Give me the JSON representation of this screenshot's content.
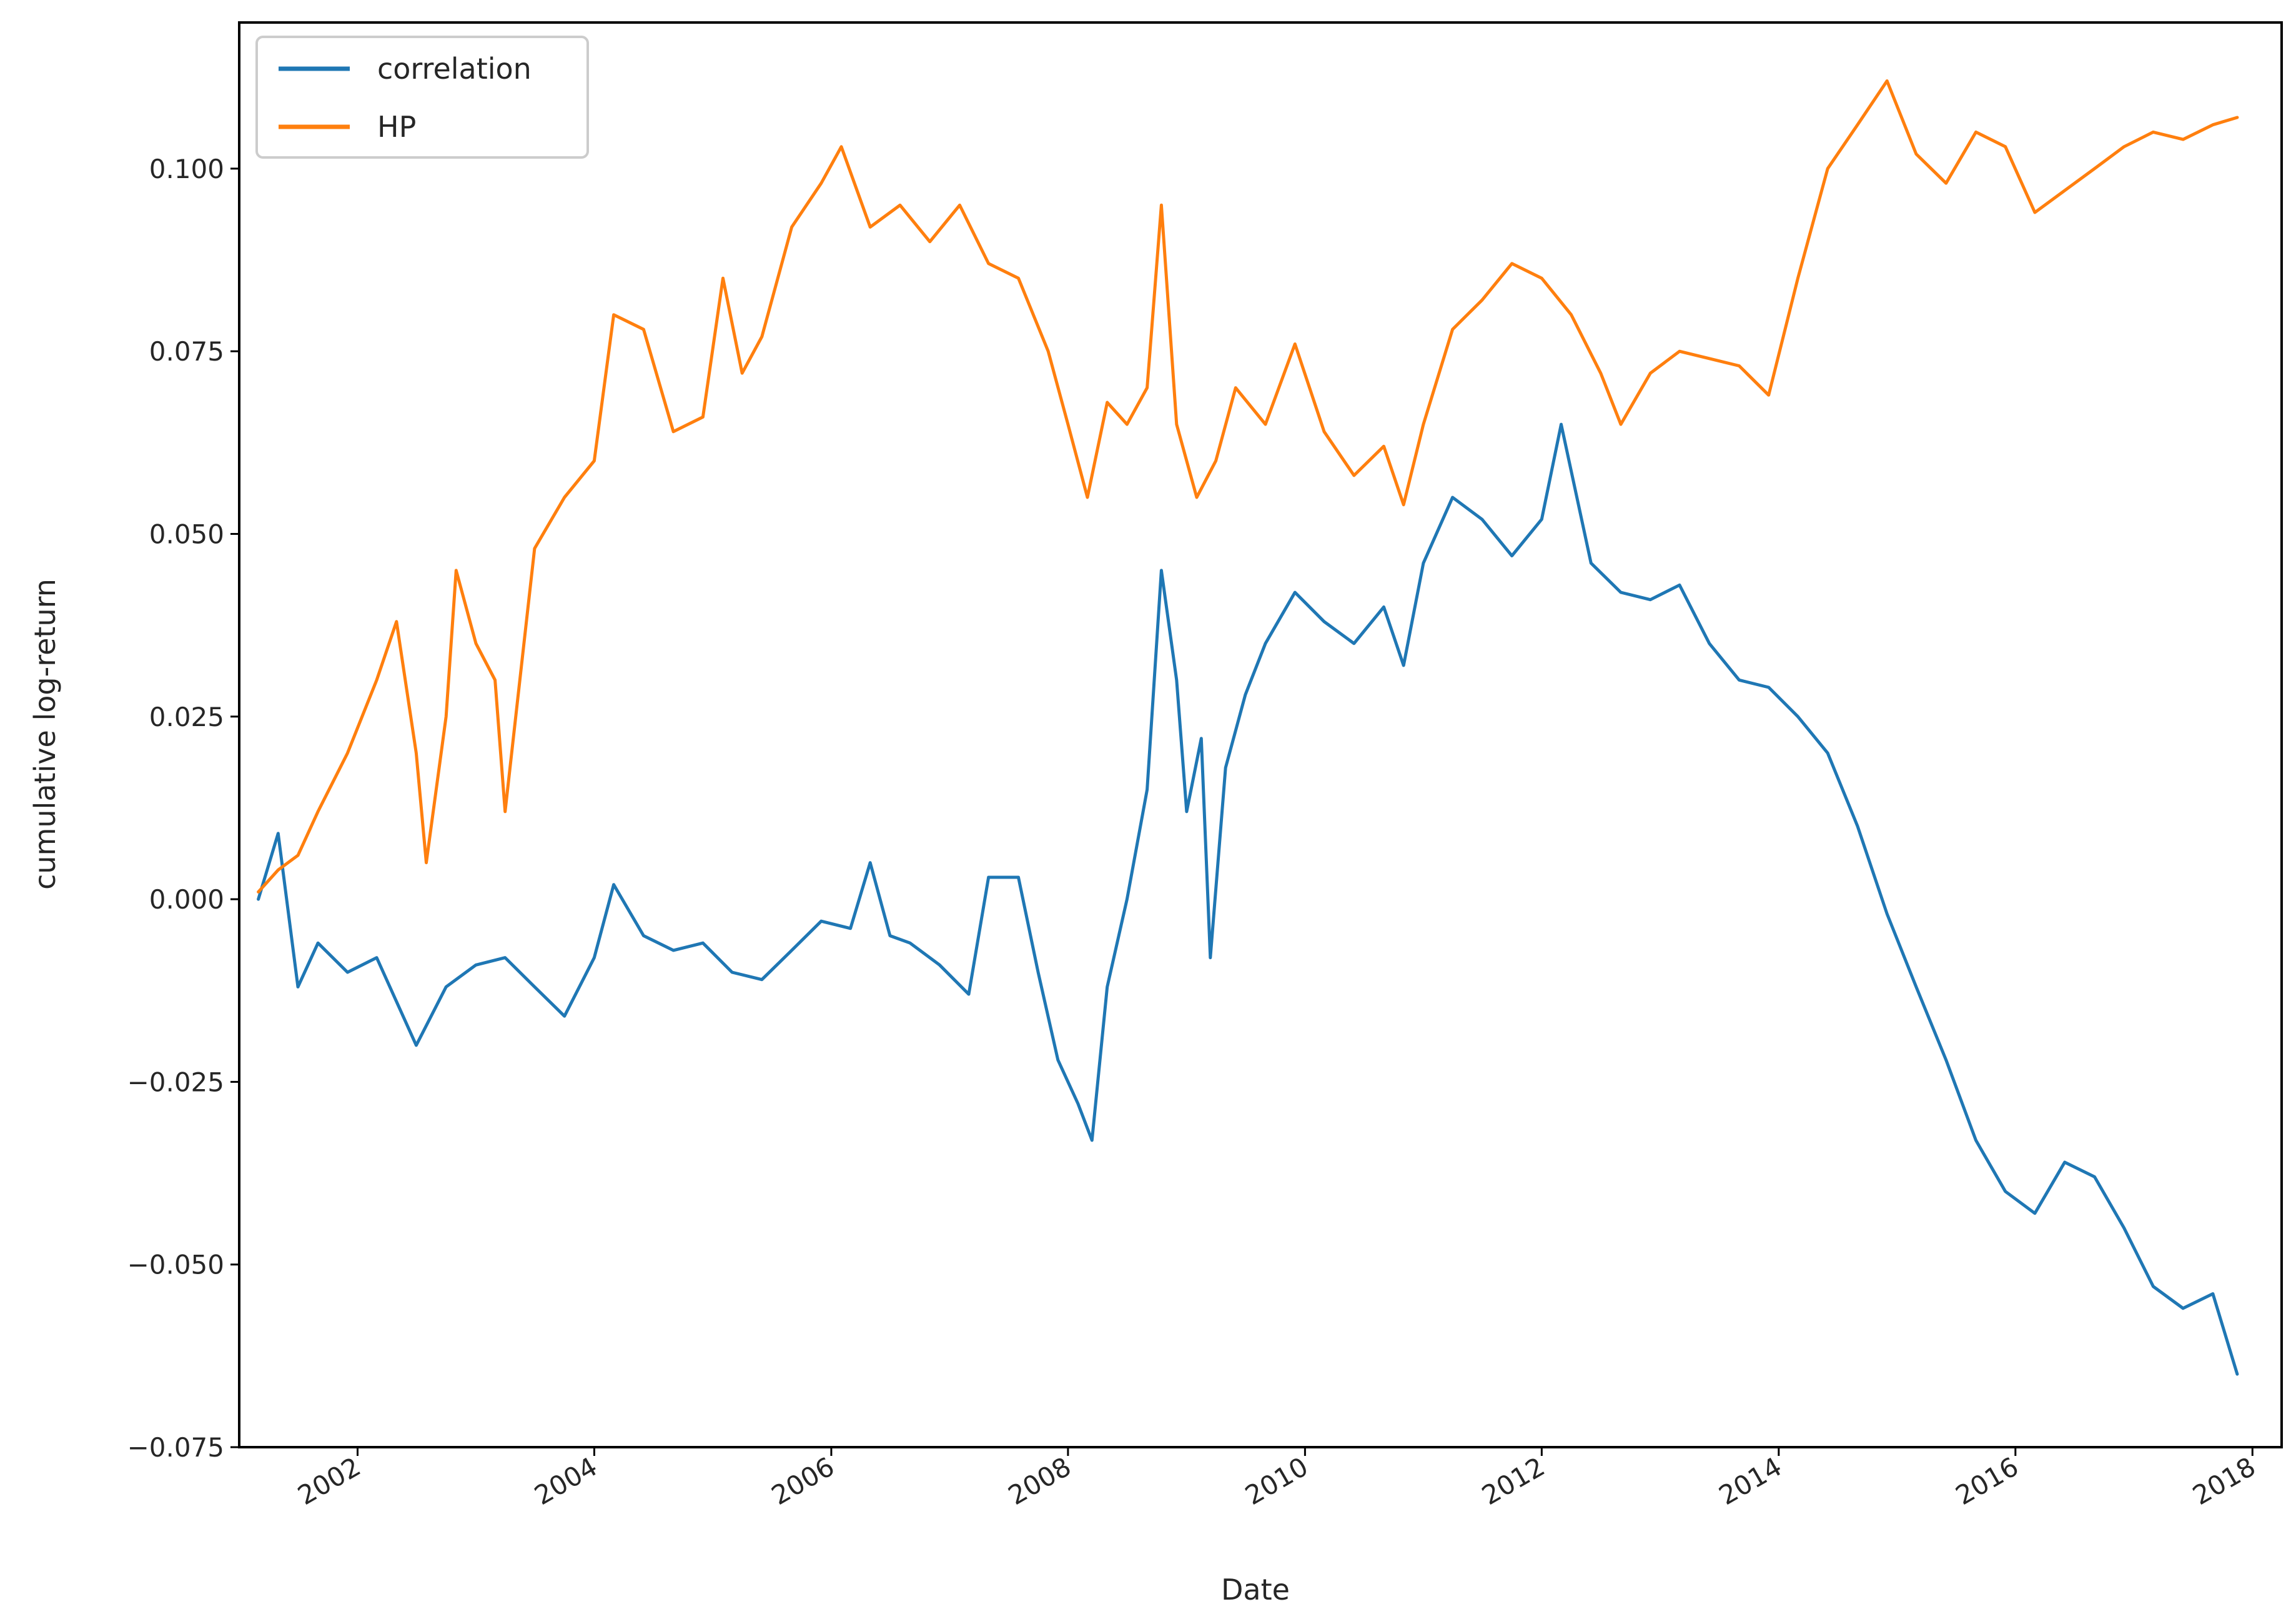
{
  "chart_data": {
    "type": "line",
    "title": "",
    "xlabel": "Date",
    "ylabel": "cumulative log-return",
    "xlim": [
      "2001-01-01",
      "2018-04-01"
    ],
    "ylim": [
      -0.075,
      0.12
    ],
    "x_ticks": [
      "2002",
      "2004",
      "2006",
      "2008",
      "2010",
      "2012",
      "2014",
      "2016",
      "2018"
    ],
    "y_ticks": [
      "0.100",
      "0.075",
      "0.050",
      "0.025",
      "0.000",
      "−0.025",
      "−0.050",
      "−0.075"
    ],
    "y_tick_values": [
      0.1,
      0.075,
      0.05,
      0.025,
      0.0,
      -0.025,
      -0.05,
      -0.075
    ],
    "grid": false,
    "legend_position": "top-left",
    "series": [
      {
        "name": "correlation",
        "color": "#1f77b4",
        "x": [
          "2001-03-01",
          "2001-05-01",
          "2001-07-01",
          "2001-09-01",
          "2001-12-01",
          "2002-03-01",
          "2002-07-01",
          "2002-10-01",
          "2003-01-01",
          "2003-04-01",
          "2003-07-01",
          "2003-10-01",
          "2004-01-01",
          "2004-03-01",
          "2004-06-01",
          "2004-09-01",
          "2004-12-01",
          "2005-03-01",
          "2005-06-01",
          "2005-09-01",
          "2005-12-01",
          "2006-03-01",
          "2006-05-01",
          "2006-07-01",
          "2006-09-01",
          "2006-12-01",
          "2007-03-01",
          "2007-05-01",
          "2007-08-01",
          "2007-10-01",
          "2007-12-01",
          "2008-02-01",
          "2008-03-15",
          "2008-05-01",
          "2008-07-01",
          "2008-09-01",
          "2008-10-15",
          "2008-12-01",
          "2009-01-01",
          "2009-02-15",
          "2009-03-15",
          "2009-05-01",
          "2009-07-01",
          "2009-09-01",
          "2009-12-01",
          "2010-03-01",
          "2010-06-01",
          "2010-09-01",
          "2010-11-01",
          "2011-01-01",
          "2011-04-01",
          "2011-07-01",
          "2011-10-01",
          "2012-01-01",
          "2012-03-01",
          "2012-06-01",
          "2012-09-01",
          "2012-12-01",
          "2013-03-01",
          "2013-06-01",
          "2013-09-01",
          "2013-12-01",
          "2014-03-01",
          "2014-06-01",
          "2014-09-01",
          "2014-12-01",
          "2015-03-01",
          "2015-06-01",
          "2015-09-01",
          "2015-12-01",
          "2016-03-01",
          "2016-06-01",
          "2016-09-01",
          "2016-12-01",
          "2017-03-01",
          "2017-06-01",
          "2017-09-01",
          "2017-11-15"
        ],
        "y": [
          0.0,
          0.009,
          -0.012,
          -0.006,
          -0.01,
          -0.008,
          -0.02,
          -0.012,
          -0.009,
          -0.008,
          -0.012,
          -0.016,
          -0.008,
          0.002,
          -0.005,
          -0.007,
          -0.006,
          -0.01,
          -0.011,
          -0.007,
          -0.003,
          -0.004,
          0.005,
          -0.005,
          -0.006,
          -0.009,
          -0.013,
          0.003,
          0.003,
          -0.01,
          -0.022,
          -0.028,
          -0.033,
          -0.012,
          0.0,
          0.015,
          0.045,
          0.03,
          0.012,
          0.022,
          -0.008,
          0.018,
          0.028,
          0.035,
          0.042,
          0.038,
          0.035,
          0.04,
          0.032,
          0.046,
          0.055,
          0.052,
          0.047,
          0.052,
          0.065,
          0.046,
          0.042,
          0.041,
          0.043,
          0.035,
          0.03,
          0.029,
          0.025,
          0.02,
          0.01,
          -0.002,
          -0.012,
          -0.022,
          -0.033,
          -0.04,
          -0.043,
          -0.036,
          -0.038,
          -0.045,
          -0.053,
          -0.056,
          -0.054,
          -0.065
        ]
      },
      {
        "name": "HP",
        "color": "#ff7f0e",
        "x": [
          "2001-03-01",
          "2001-05-01",
          "2001-07-01",
          "2001-09-01",
          "2001-12-01",
          "2002-03-01",
          "2002-05-01",
          "2002-07-01",
          "2002-08-01",
          "2002-10-01",
          "2002-11-01",
          "2003-01-01",
          "2003-03-01",
          "2003-04-01",
          "2003-07-01",
          "2003-10-01",
          "2004-01-01",
          "2004-03-01",
          "2004-06-01",
          "2004-09-01",
          "2004-12-01",
          "2005-02-01",
          "2005-04-01",
          "2005-06-01",
          "2005-09-01",
          "2005-12-01",
          "2006-02-01",
          "2006-05-01",
          "2006-08-01",
          "2006-11-01",
          "2007-02-01",
          "2007-05-01",
          "2007-08-01",
          "2007-11-01",
          "2008-01-01",
          "2008-03-01",
          "2008-05-01",
          "2008-07-01",
          "2008-09-01",
          "2008-10-15",
          "2008-12-01",
          "2009-02-01",
          "2009-04-01",
          "2009-06-01",
          "2009-09-01",
          "2009-12-01",
          "2010-03-01",
          "2010-06-01",
          "2010-09-01",
          "2010-11-01",
          "2011-01-01",
          "2011-04-01",
          "2011-07-01",
          "2011-10-01",
          "2012-01-01",
          "2012-04-01",
          "2012-07-01",
          "2012-09-01",
          "2012-12-01",
          "2013-03-01",
          "2013-06-01",
          "2013-09-01",
          "2013-12-01",
          "2014-03-01",
          "2014-06-01",
          "2014-09-01",
          "2014-12-01",
          "2015-03-01",
          "2015-06-01",
          "2015-09-01",
          "2015-12-01",
          "2016-03-01",
          "2016-06-01",
          "2016-09-01",
          "2016-12-01",
          "2017-03-01",
          "2017-06-01",
          "2017-09-01",
          "2017-11-15"
        ],
        "y": [
          0.001,
          0.004,
          0.006,
          0.012,
          0.02,
          0.03,
          0.038,
          0.02,
          0.005,
          0.025,
          0.045,
          0.035,
          0.03,
          0.012,
          0.048,
          0.055,
          0.06,
          0.08,
          0.078,
          0.064,
          0.066,
          0.085,
          0.072,
          0.077,
          0.092,
          0.098,
          0.103,
          0.092,
          0.095,
          0.09,
          0.095,
          0.087,
          0.085,
          0.075,
          0.065,
          0.055,
          0.068,
          0.065,
          0.07,
          0.095,
          0.065,
          0.055,
          0.06,
          0.07,
          0.065,
          0.076,
          0.064,
          0.058,
          0.062,
          0.054,
          0.065,
          0.078,
          0.082,
          0.087,
          0.085,
          0.08,
          0.072,
          0.065,
          0.072,
          0.075,
          0.074,
          0.073,
          0.069,
          0.085,
          0.1,
          0.106,
          0.112,
          0.102,
          0.098,
          0.105,
          0.103,
          0.094,
          0.097,
          0.1,
          0.103,
          0.105,
          0.104,
          0.106,
          0.107
        ]
      }
    ]
  }
}
